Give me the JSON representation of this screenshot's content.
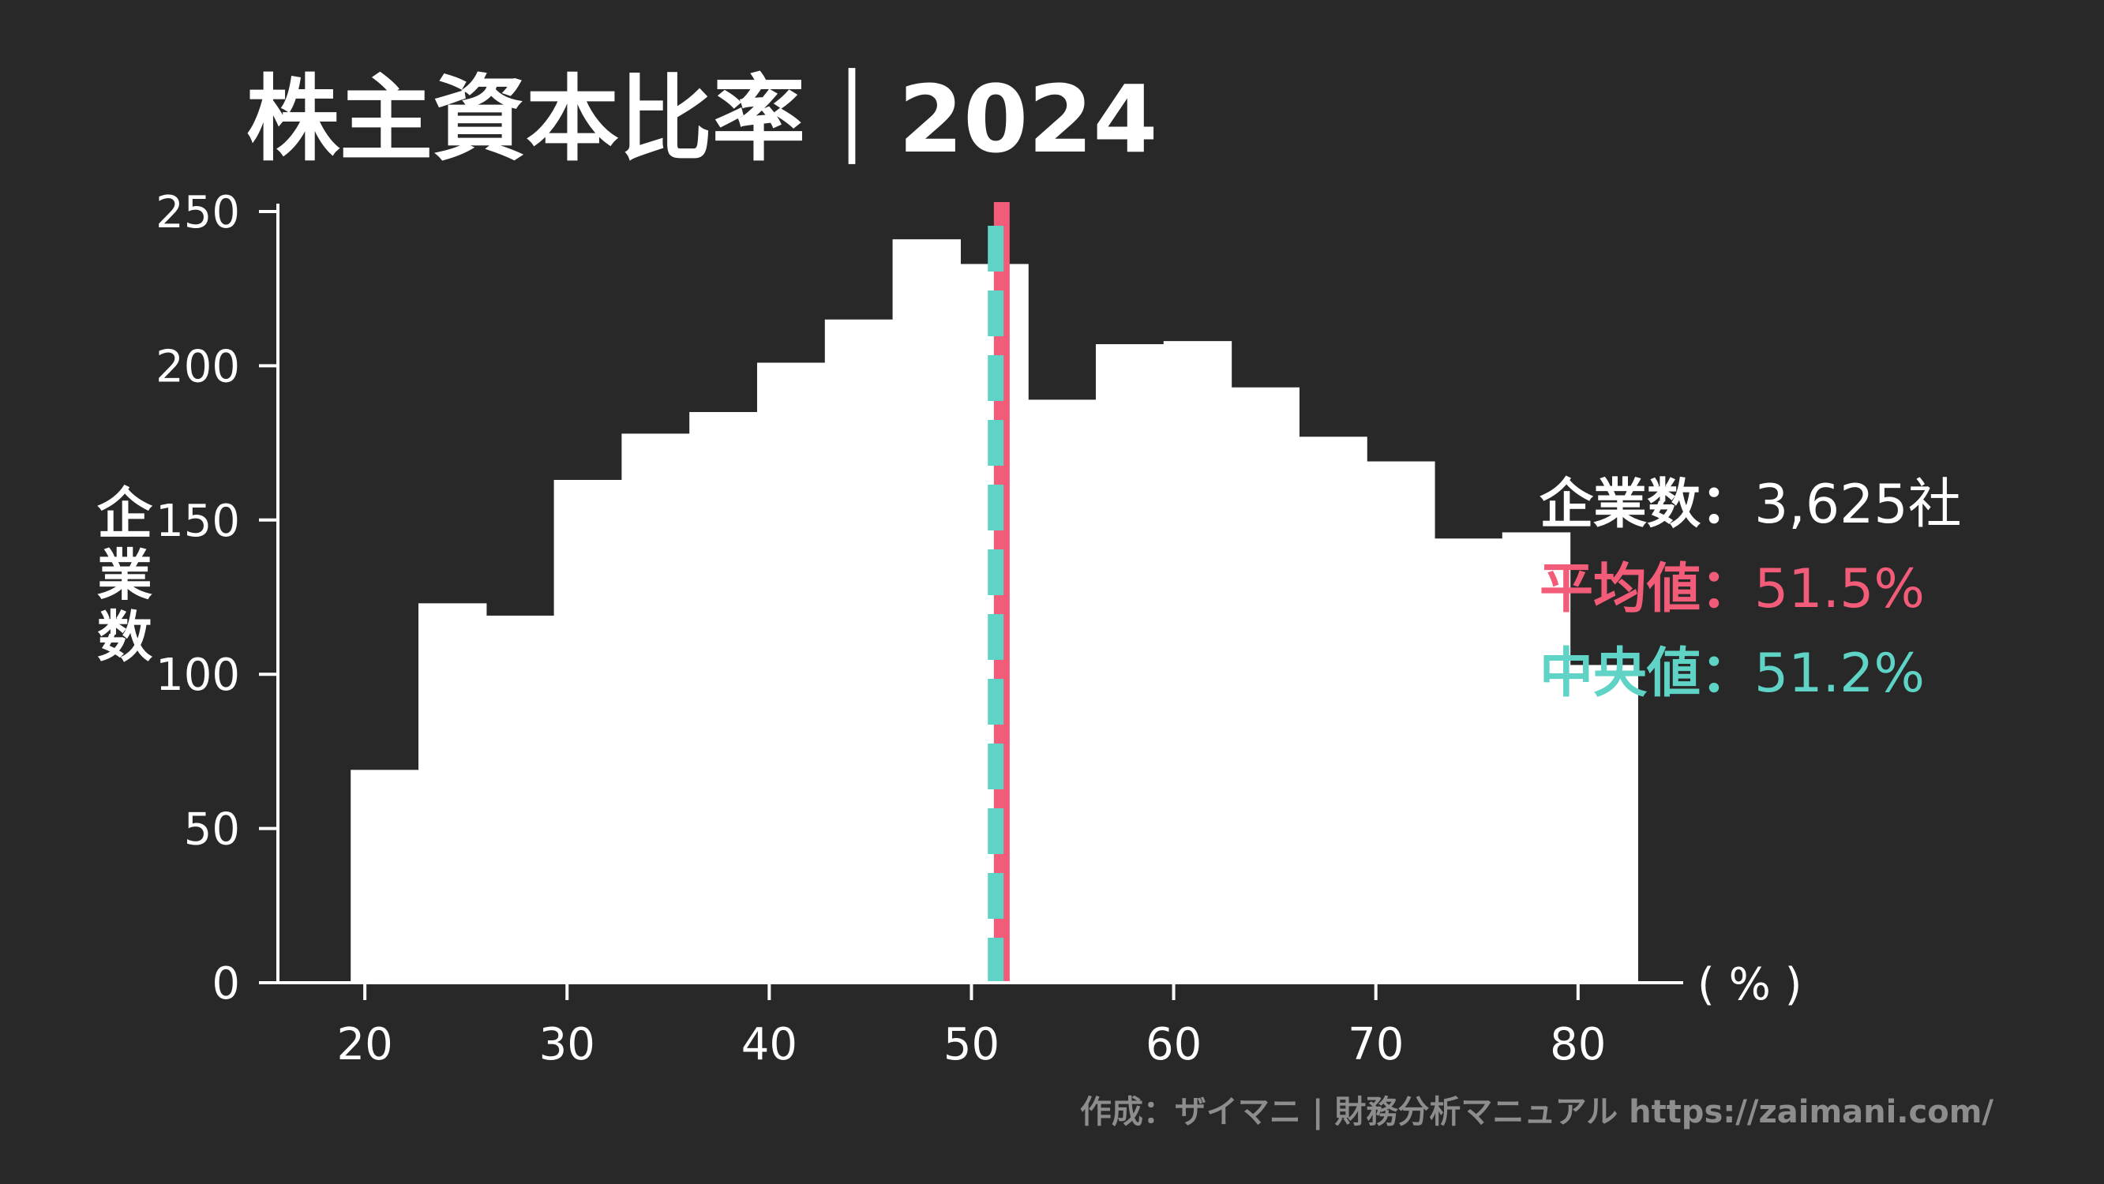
{
  "colors": {
    "background": "#282828",
    "bars": "#ffffff",
    "axis": "#ffffff",
    "text": "#ffffff",
    "mean": "#f25c78",
    "median": "#5fd3c6",
    "credit": "#8d8d8d"
  },
  "chart_data": {
    "type": "bar",
    "title": "株主資本比率｜2024",
    "ylabel": "企業数",
    "xunit": "( % )",
    "xlim": [
      15.7,
      85.2
    ],
    "ylim": [
      0,
      250
    ],
    "xticks": [
      20,
      30,
      40,
      50,
      60,
      70,
      80
    ],
    "yticks": [
      0,
      50,
      100,
      150,
      200,
      250
    ],
    "bins": [
      {
        "x0": 19.3,
        "x1": 22.65,
        "count": 69
      },
      {
        "x0": 22.65,
        "x1": 26.0,
        "count": 123
      },
      {
        "x0": 26.0,
        "x1": 29.35,
        "count": 119
      },
      {
        "x0": 29.35,
        "x1": 32.7,
        "count": 163
      },
      {
        "x0": 32.7,
        "x1": 36.05,
        "count": 178
      },
      {
        "x0": 36.05,
        "x1": 39.4,
        "count": 185
      },
      {
        "x0": 39.4,
        "x1": 42.75,
        "count": 201
      },
      {
        "x0": 42.75,
        "x1": 46.1,
        "count": 215
      },
      {
        "x0": 46.1,
        "x1": 49.45,
        "count": 241
      },
      {
        "x0": 49.45,
        "x1": 52.8,
        "count": 233
      },
      {
        "x0": 52.8,
        "x1": 56.15,
        "count": 189
      },
      {
        "x0": 56.15,
        "x1": 59.5,
        "count": 207
      },
      {
        "x0": 59.5,
        "x1": 62.85,
        "count": 208
      },
      {
        "x0": 62.85,
        "x1": 66.2,
        "count": 193
      },
      {
        "x0": 66.2,
        "x1": 69.55,
        "count": 177
      },
      {
        "x0": 69.55,
        "x1": 72.9,
        "count": 169
      },
      {
        "x0": 72.9,
        "x1": 76.25,
        "count": 144
      },
      {
        "x0": 76.25,
        "x1": 79.6,
        "count": 146
      },
      {
        "x0": 79.6,
        "x1": 82.95,
        "count": 103
      }
    ],
    "mean": 51.5,
    "median": 51.2,
    "stats": [
      {
        "key": "count",
        "label": "企業数：",
        "value": "3,625社"
      },
      {
        "key": "mean",
        "label": "平均値：",
        "value": "51.5%"
      },
      {
        "key": "median",
        "label": "中央値：",
        "value": "51.2%"
      }
    ]
  },
  "credit": "作成：ザイマニ | 財務分析マニュアル https://zaimani.com/"
}
